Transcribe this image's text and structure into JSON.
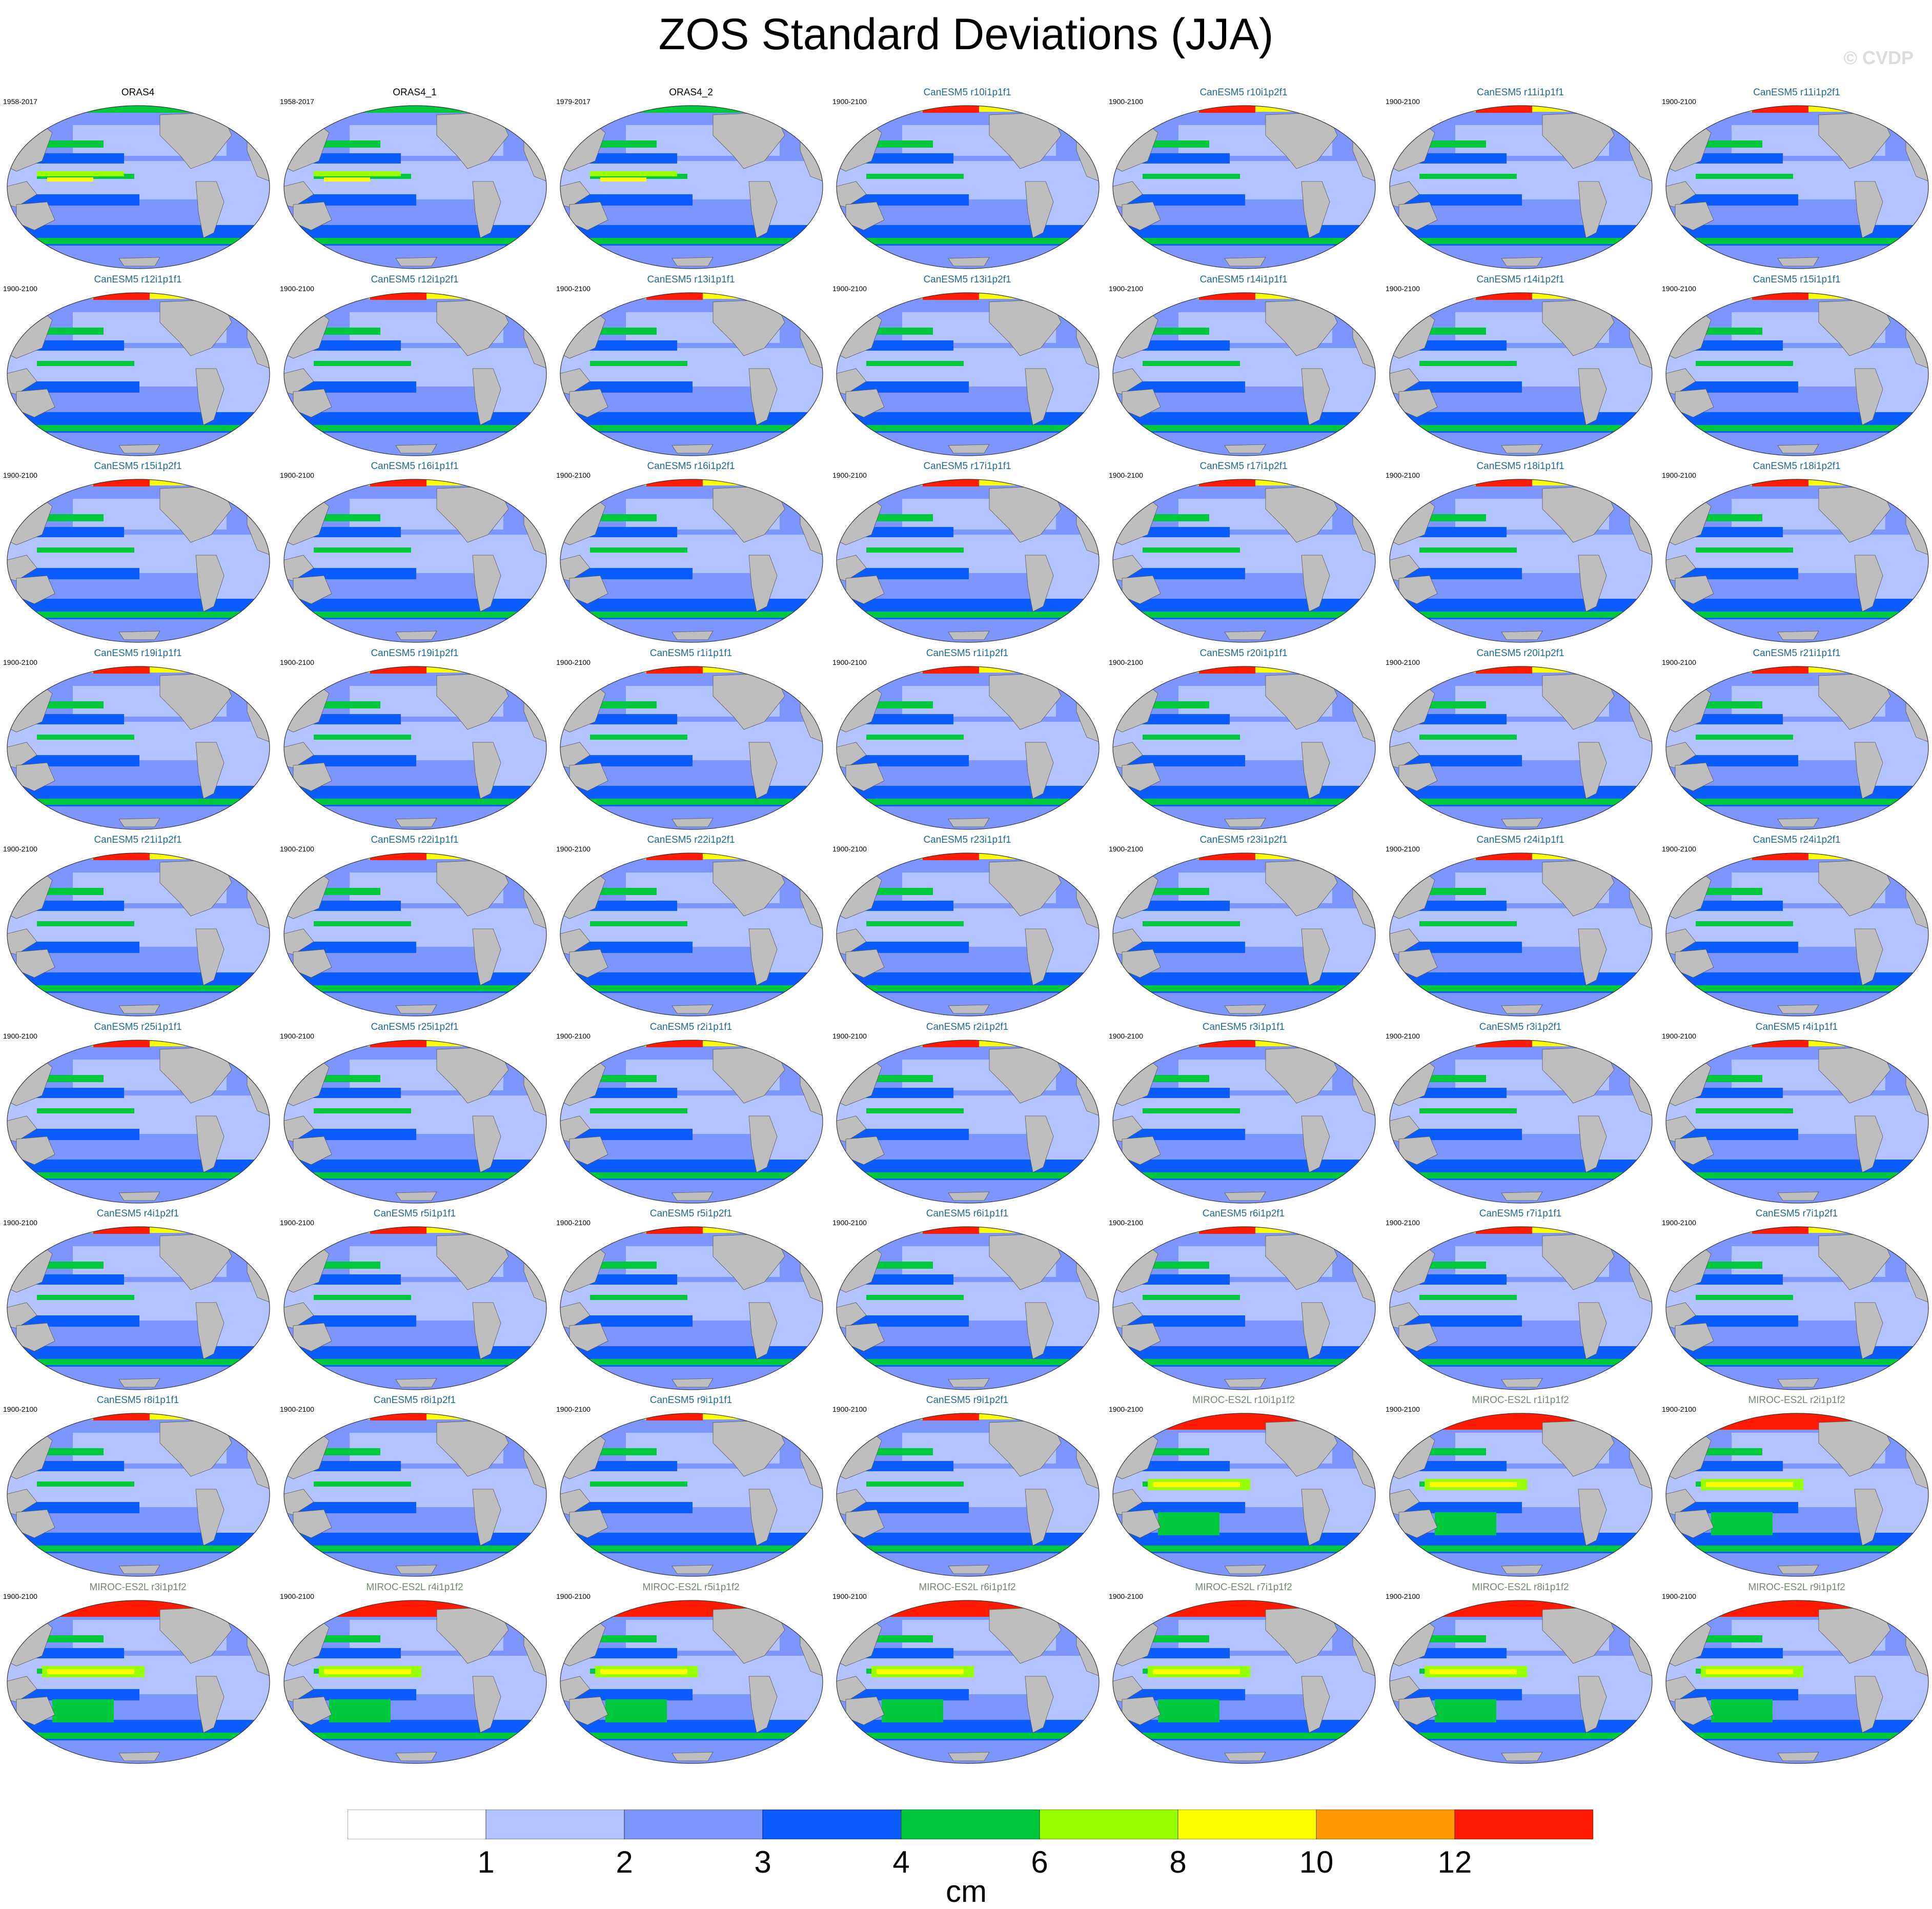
{
  "figure": {
    "title": "ZOS Standard Deviations (JJA)",
    "watermark": "© CVDP"
  },
  "colors": {
    "obs_title": "#000000",
    "canesm_title": "#1f6a92",
    "miroc_title": "#6f8a6f",
    "land": "#bebebe",
    "coast": "#555555"
  },
  "panels": [
    {
      "title": "ORAS4",
      "period": "1958-2017",
      "group": "obs"
    },
    {
      "title": "ORAS4_1",
      "period": "1958-2017",
      "group": "obs"
    },
    {
      "title": "ORAS4_2",
      "period": "1979-2017",
      "group": "obs"
    },
    {
      "title": "CanESM5 r10i1p1f1",
      "period": "1900-2100",
      "group": "canesm"
    },
    {
      "title": "CanESM5 r10i1p2f1",
      "period": "1900-2100",
      "group": "canesm"
    },
    {
      "title": "CanESM5 r11i1p1f1",
      "period": "1900-2100",
      "group": "canesm"
    },
    {
      "title": "CanESM5 r11i1p2f1",
      "period": "1900-2100",
      "group": "canesm"
    },
    {
      "title": "CanESM5 r12i1p1f1",
      "period": "1900-2100",
      "group": "canesm"
    },
    {
      "title": "CanESM5 r12i1p2f1",
      "period": "1900-2100",
      "group": "canesm"
    },
    {
      "title": "CanESM5 r13i1p1f1",
      "period": "1900-2100",
      "group": "canesm"
    },
    {
      "title": "CanESM5 r13i1p2f1",
      "period": "1900-2100",
      "group": "canesm"
    },
    {
      "title": "CanESM5 r14i1p1f1",
      "period": "1900-2100",
      "group": "canesm"
    },
    {
      "title": "CanESM5 r14i1p2f1",
      "period": "1900-2100",
      "group": "canesm"
    },
    {
      "title": "CanESM5 r15i1p1f1",
      "period": "1900-2100",
      "group": "canesm"
    },
    {
      "title": "CanESM5 r15i1p2f1",
      "period": "1900-2100",
      "group": "canesm"
    },
    {
      "title": "CanESM5 r16i1p1f1",
      "period": "1900-2100",
      "group": "canesm"
    },
    {
      "title": "CanESM5 r16i1p2f1",
      "period": "1900-2100",
      "group": "canesm"
    },
    {
      "title": "CanESM5 r17i1p1f1",
      "period": "1900-2100",
      "group": "canesm"
    },
    {
      "title": "CanESM5 r17i1p2f1",
      "period": "1900-2100",
      "group": "canesm"
    },
    {
      "title": "CanESM5 r18i1p1f1",
      "period": "1900-2100",
      "group": "canesm"
    },
    {
      "title": "CanESM5 r18i1p2f1",
      "period": "1900-2100",
      "group": "canesm"
    },
    {
      "title": "CanESM5 r19i1p1f1",
      "period": "1900-2100",
      "group": "canesm"
    },
    {
      "title": "CanESM5 r19i1p2f1",
      "period": "1900-2100",
      "group": "canesm"
    },
    {
      "title": "CanESM5 r1i1p1f1",
      "period": "1900-2100",
      "group": "canesm"
    },
    {
      "title": "CanESM5 r1i1p2f1",
      "period": "1900-2100",
      "group": "canesm"
    },
    {
      "title": "CanESM5 r20i1p1f1",
      "period": "1900-2100",
      "group": "canesm"
    },
    {
      "title": "CanESM5 r20i1p2f1",
      "period": "1900-2100",
      "group": "canesm"
    },
    {
      "title": "CanESM5 r21i1p1f1",
      "period": "1900-2100",
      "group": "canesm"
    },
    {
      "title": "CanESM5 r21i1p2f1",
      "period": "1900-2100",
      "group": "canesm"
    },
    {
      "title": "CanESM5 r22i1p1f1",
      "period": "1900-2100",
      "group": "canesm"
    },
    {
      "title": "CanESM5 r22i1p2f1",
      "period": "1900-2100",
      "group": "canesm"
    },
    {
      "title": "CanESM5 r23i1p1f1",
      "period": "1900-2100",
      "group": "canesm"
    },
    {
      "title": "CanESM5 r23i1p2f1",
      "period": "1900-2100",
      "group": "canesm"
    },
    {
      "title": "CanESM5 r24i1p1f1",
      "period": "1900-2100",
      "group": "canesm"
    },
    {
      "title": "CanESM5 r24i1p2f1",
      "period": "1900-2100",
      "group": "canesm"
    },
    {
      "title": "CanESM5 r25i1p1f1",
      "period": "1900-2100",
      "group": "canesm"
    },
    {
      "title": "CanESM5 r25i1p2f1",
      "period": "1900-2100",
      "group": "canesm"
    },
    {
      "title": "CanESM5 r2i1p1f1",
      "period": "1900-2100",
      "group": "canesm"
    },
    {
      "title": "CanESM5 r2i1p2f1",
      "period": "1900-2100",
      "group": "canesm"
    },
    {
      "title": "CanESM5 r3i1p1f1",
      "period": "1900-2100",
      "group": "canesm"
    },
    {
      "title": "CanESM5 r3i1p2f1",
      "period": "1900-2100",
      "group": "canesm"
    },
    {
      "title": "CanESM5 r4i1p1f1",
      "period": "1900-2100",
      "group": "canesm"
    },
    {
      "title": "CanESM5 r4i1p2f1",
      "period": "1900-2100",
      "group": "canesm"
    },
    {
      "title": "CanESM5 r5i1p1f1",
      "period": "1900-2100",
      "group": "canesm"
    },
    {
      "title": "CanESM5 r5i1p2f1",
      "period": "1900-2100",
      "group": "canesm"
    },
    {
      "title": "CanESM5 r6i1p1f1",
      "period": "1900-2100",
      "group": "canesm"
    },
    {
      "title": "CanESM5 r6i1p2f1",
      "period": "1900-2100",
      "group": "canesm"
    },
    {
      "title": "CanESM5 r7i1p1f1",
      "period": "1900-2100",
      "group": "canesm"
    },
    {
      "title": "CanESM5 r7i1p2f1",
      "period": "1900-2100",
      "group": "canesm"
    },
    {
      "title": "CanESM5 r8i1p1f1",
      "period": "1900-2100",
      "group": "canesm"
    },
    {
      "title": "CanESM5 r8i1p2f1",
      "period": "1900-2100",
      "group": "canesm"
    },
    {
      "title": "CanESM5 r9i1p1f1",
      "period": "1900-2100",
      "group": "canesm"
    },
    {
      "title": "CanESM5 r9i1p2f1",
      "period": "1900-2100",
      "group": "canesm"
    },
    {
      "title": "MIROC-ES2L r10i1p1f2",
      "period": "1900-2100",
      "group": "miroc"
    },
    {
      "title": "MIROC-ES2L r1i1p1f2",
      "period": "1900-2100",
      "group": "miroc"
    },
    {
      "title": "MIROC-ES2L r2i1p1f2",
      "period": "1900-2100",
      "group": "miroc"
    },
    {
      "title": "MIROC-ES2L r3i1p1f2",
      "period": "1900-2100",
      "group": "miroc"
    },
    {
      "title": "MIROC-ES2L r4i1p1f2",
      "period": "1900-2100",
      "group": "miroc"
    },
    {
      "title": "MIROC-ES2L r5i1p1f2",
      "period": "1900-2100",
      "group": "miroc"
    },
    {
      "title": "MIROC-ES2L r6i1p1f2",
      "period": "1900-2100",
      "group": "miroc"
    },
    {
      "title": "MIROC-ES2L r7i1p1f2",
      "period": "1900-2100",
      "group": "miroc"
    },
    {
      "title": "MIROC-ES2L r8i1p1f2",
      "period": "1900-2100",
      "group": "miroc"
    },
    {
      "title": "MIROC-ES2L r9i1p1f2",
      "period": "1900-2100",
      "group": "miroc"
    }
  ],
  "colorbar": {
    "unit": "cm",
    "tick_labels": [
      "1",
      "2",
      "3",
      "4",
      "6",
      "8",
      "10",
      "12"
    ],
    "bins": [
      {
        "range": "<1",
        "color": "#ffffff"
      },
      {
        "range": "1-2",
        "color": "#b3c3ff"
      },
      {
        "range": "2-3",
        "color": "#7d96ff"
      },
      {
        "range": "3-4",
        "color": "#0a5cff"
      },
      {
        "range": "4-6",
        "color": "#00c83c"
      },
      {
        "range": "6-8",
        "color": "#96ff00"
      },
      {
        "range": "8-10",
        "color": "#ffff00"
      },
      {
        "range": "10-12",
        "color": "#ff9900"
      },
      {
        "range": ">12",
        "color": "#ff1a00"
      }
    ]
  }
}
